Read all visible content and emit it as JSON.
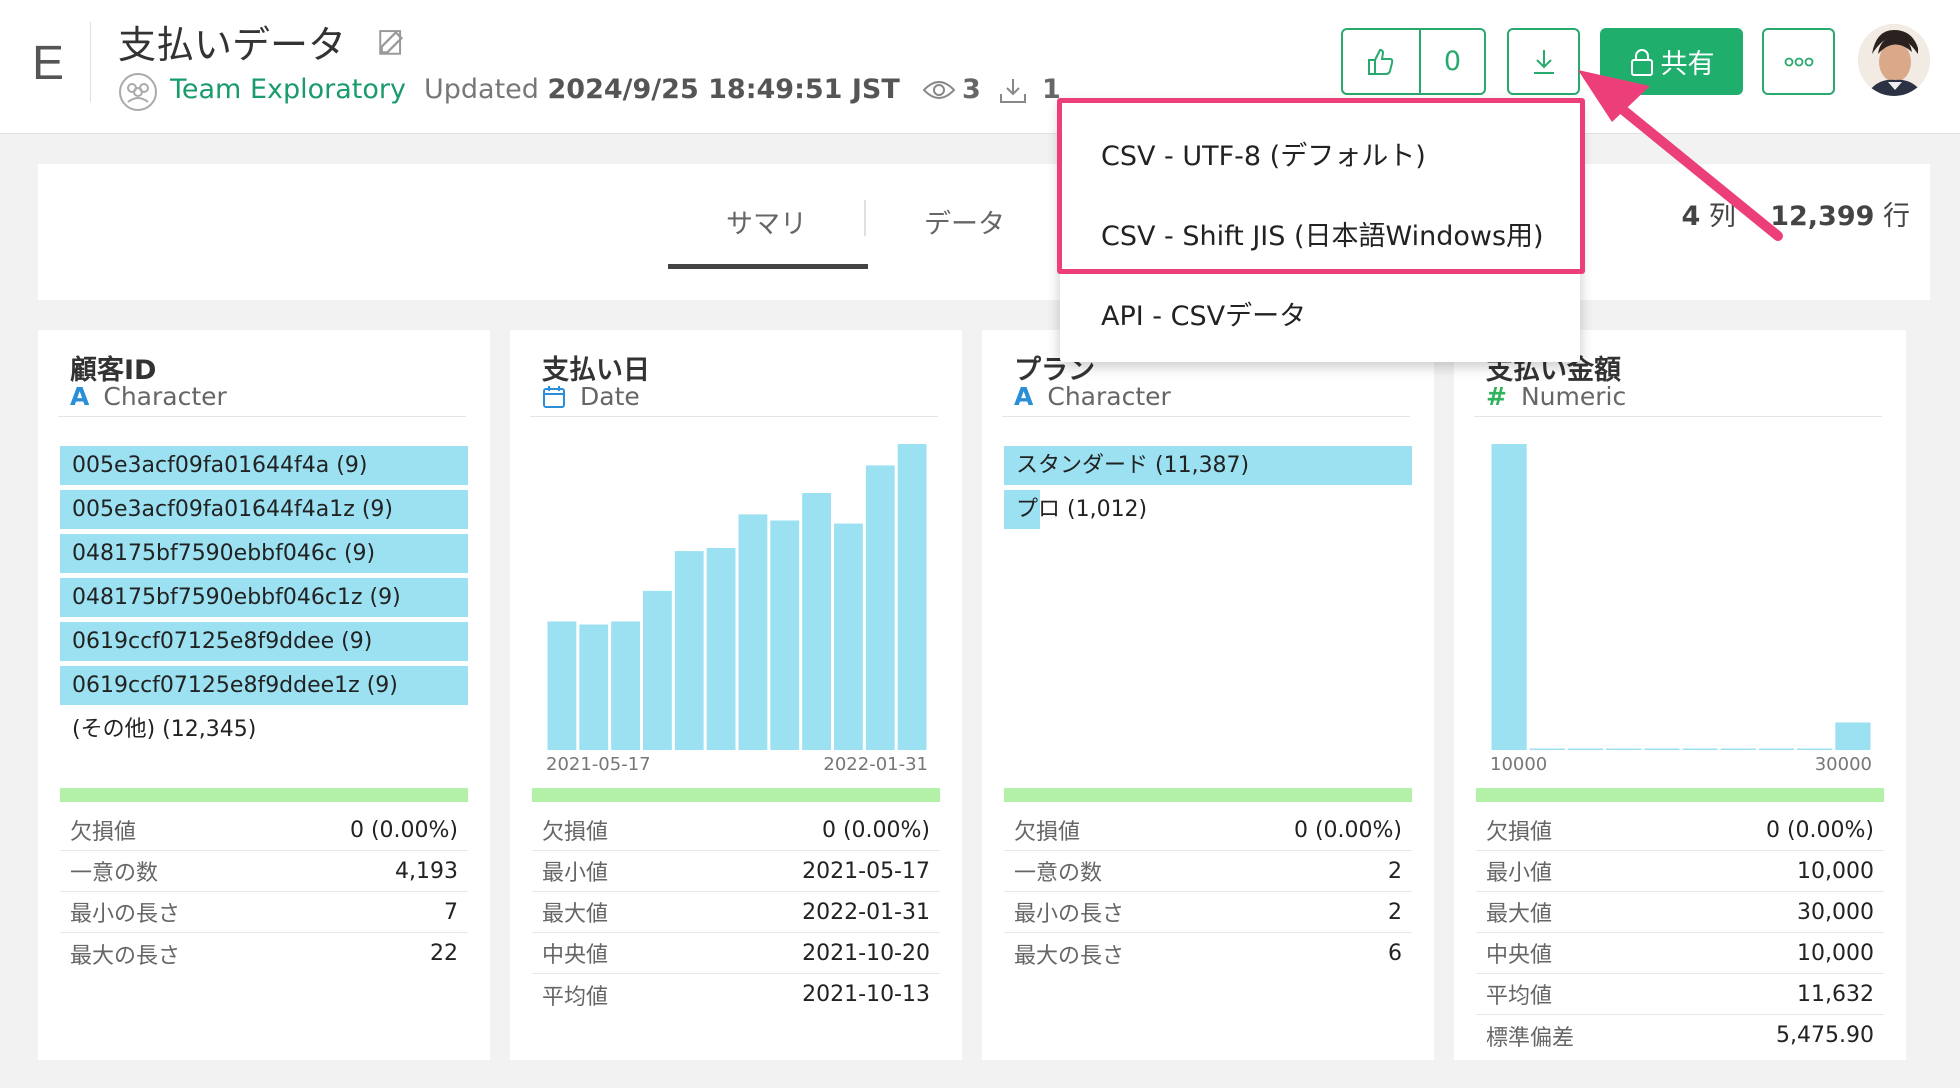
{
  "header": {
    "logo": "E",
    "title": "支払いデータ",
    "team": "Team Exploratory",
    "updated_prefix": "Updated",
    "updated_at": "2024/9/25 18:49:51 JST",
    "views": "3",
    "downloads": "1",
    "like_count": "0",
    "share_label": "共有"
  },
  "tabs": {
    "summary": "サマリ",
    "data": "データ"
  },
  "table_info": {
    "columns_num": "4",
    "columns_unit": "列",
    "rows_num": "12,399",
    "rows_unit": "行"
  },
  "dropdown": {
    "items": [
      "CSV - UTF-8 (デフォルト)",
      "CSV - Shift JIS (日本語Windows用)",
      "API - CSVデータ"
    ]
  },
  "cards": [
    {
      "title": "顧客ID",
      "type_icon": "A",
      "type": "Character",
      "values": [
        {
          "label": "005e3acf09fa01644f4a (9)",
          "fraction": 1.0
        },
        {
          "label": "005e3acf09fa01644f4a1z (9)",
          "fraction": 1.0
        },
        {
          "label": "048175bf7590ebbf046c (9)",
          "fraction": 1.0
        },
        {
          "label": "048175bf7590ebbf046c1z (9)",
          "fraction": 1.0
        },
        {
          "label": "0619ccf07125e8f9ddee (9)",
          "fraction": 1.0
        },
        {
          "label": "0619ccf07125e8f9ddee1z (9)",
          "fraction": 1.0
        },
        {
          "label": "(その他) (12,345)",
          "fraction": 0
        }
      ],
      "stats": [
        {
          "label": "欠損値",
          "value": "0 (0.00%)"
        },
        {
          "label": "一意の数",
          "value": "4,193"
        },
        {
          "label": "最小の長さ",
          "value": "7"
        },
        {
          "label": "最大の長さ",
          "value": "22"
        }
      ]
    },
    {
      "title": "支払い日",
      "type_icon": "calendar-icon",
      "type": "Date",
      "x_min_label": "2021-05-17",
      "x_max_label": "2022-01-31",
      "histogram": [
        0.42,
        0.41,
        0.42,
        0.52,
        0.65,
        0.66,
        0.77,
        0.75,
        0.84,
        0.74,
        0.93,
        1.0
      ],
      "stats": [
        {
          "label": "欠損値",
          "value": "0 (0.00%)"
        },
        {
          "label": "最小値",
          "value": "2021-05-17"
        },
        {
          "label": "最大値",
          "value": "2022-01-31"
        },
        {
          "label": "中央値",
          "value": "2021-10-20"
        },
        {
          "label": "平均値",
          "value": "2021-10-13"
        }
      ]
    },
    {
      "title": "プラン",
      "type_icon": "A",
      "type": "Character",
      "values": [
        {
          "label": "スタンダード (11,387)",
          "fraction": 1.0
        },
        {
          "label": "プロ (1,012)",
          "fraction": 0.089
        }
      ],
      "stats": [
        {
          "label": "欠損値",
          "value": "0 (0.00%)"
        },
        {
          "label": "一意の数",
          "value": "2"
        },
        {
          "label": "最小の長さ",
          "value": "2"
        },
        {
          "label": "最大の長さ",
          "value": "6"
        }
      ]
    },
    {
      "title": "支払い金額",
      "type_icon": "#",
      "type": "Numeric",
      "x_min_label": "10000",
      "x_max_label": "30000",
      "histogram": [
        1.0,
        0.004,
        0.004,
        0.004,
        0.004,
        0.004,
        0.004,
        0.004,
        0.004,
        0.09
      ],
      "stats": [
        {
          "label": "欠損値",
          "value": "0 (0.00%)"
        },
        {
          "label": "最小値",
          "value": "10,000"
        },
        {
          "label": "最大値",
          "value": "30,000"
        },
        {
          "label": "中央値",
          "value": "10,000"
        },
        {
          "label": "平均値",
          "value": "11,632"
        },
        {
          "label": "標準偏差",
          "value": "5,475.90"
        }
      ]
    }
  ],
  "colors": {
    "accent_green": "#1fae6c",
    "bar_blue": "#9be1f1",
    "highlight_pink": "#ec3f7a",
    "missing_bar_green": "#b3f0a8"
  }
}
